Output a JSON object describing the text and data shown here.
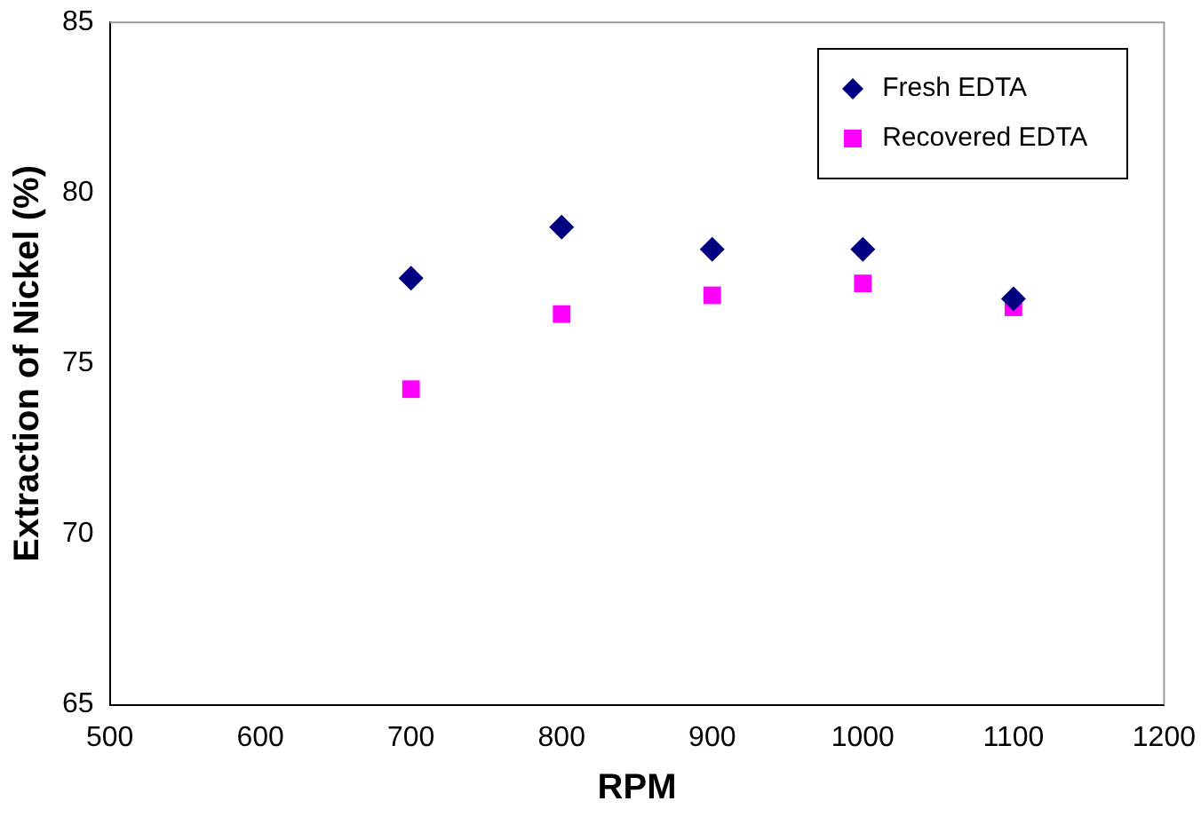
{
  "chart_data": {
    "type": "scatter",
    "xlabel": "RPM",
    "ylabel": "Extraction of Nickel (%)",
    "x": [
      700,
      800,
      900,
      1000,
      1100
    ],
    "series": [
      {
        "name": "Fresh EDTA",
        "color": "#000080",
        "marker": "diamond",
        "values": [
          77.5,
          79.0,
          78.35,
          78.35,
          76.9
        ]
      },
      {
        "name": "Recovered EDTA",
        "color": "#ff00ff",
        "marker": "square",
        "values": [
          74.25,
          76.45,
          77.0,
          77.35,
          76.65
        ]
      }
    ],
    "xlim": [
      500,
      1200
    ],
    "xticks": [
      500,
      600,
      700,
      800,
      900,
      1000,
      1100,
      1200
    ],
    "ylim": [
      65,
      85
    ],
    "yticks": [
      65,
      70,
      75,
      80,
      85
    ],
    "grid": false,
    "legend": "top right"
  }
}
